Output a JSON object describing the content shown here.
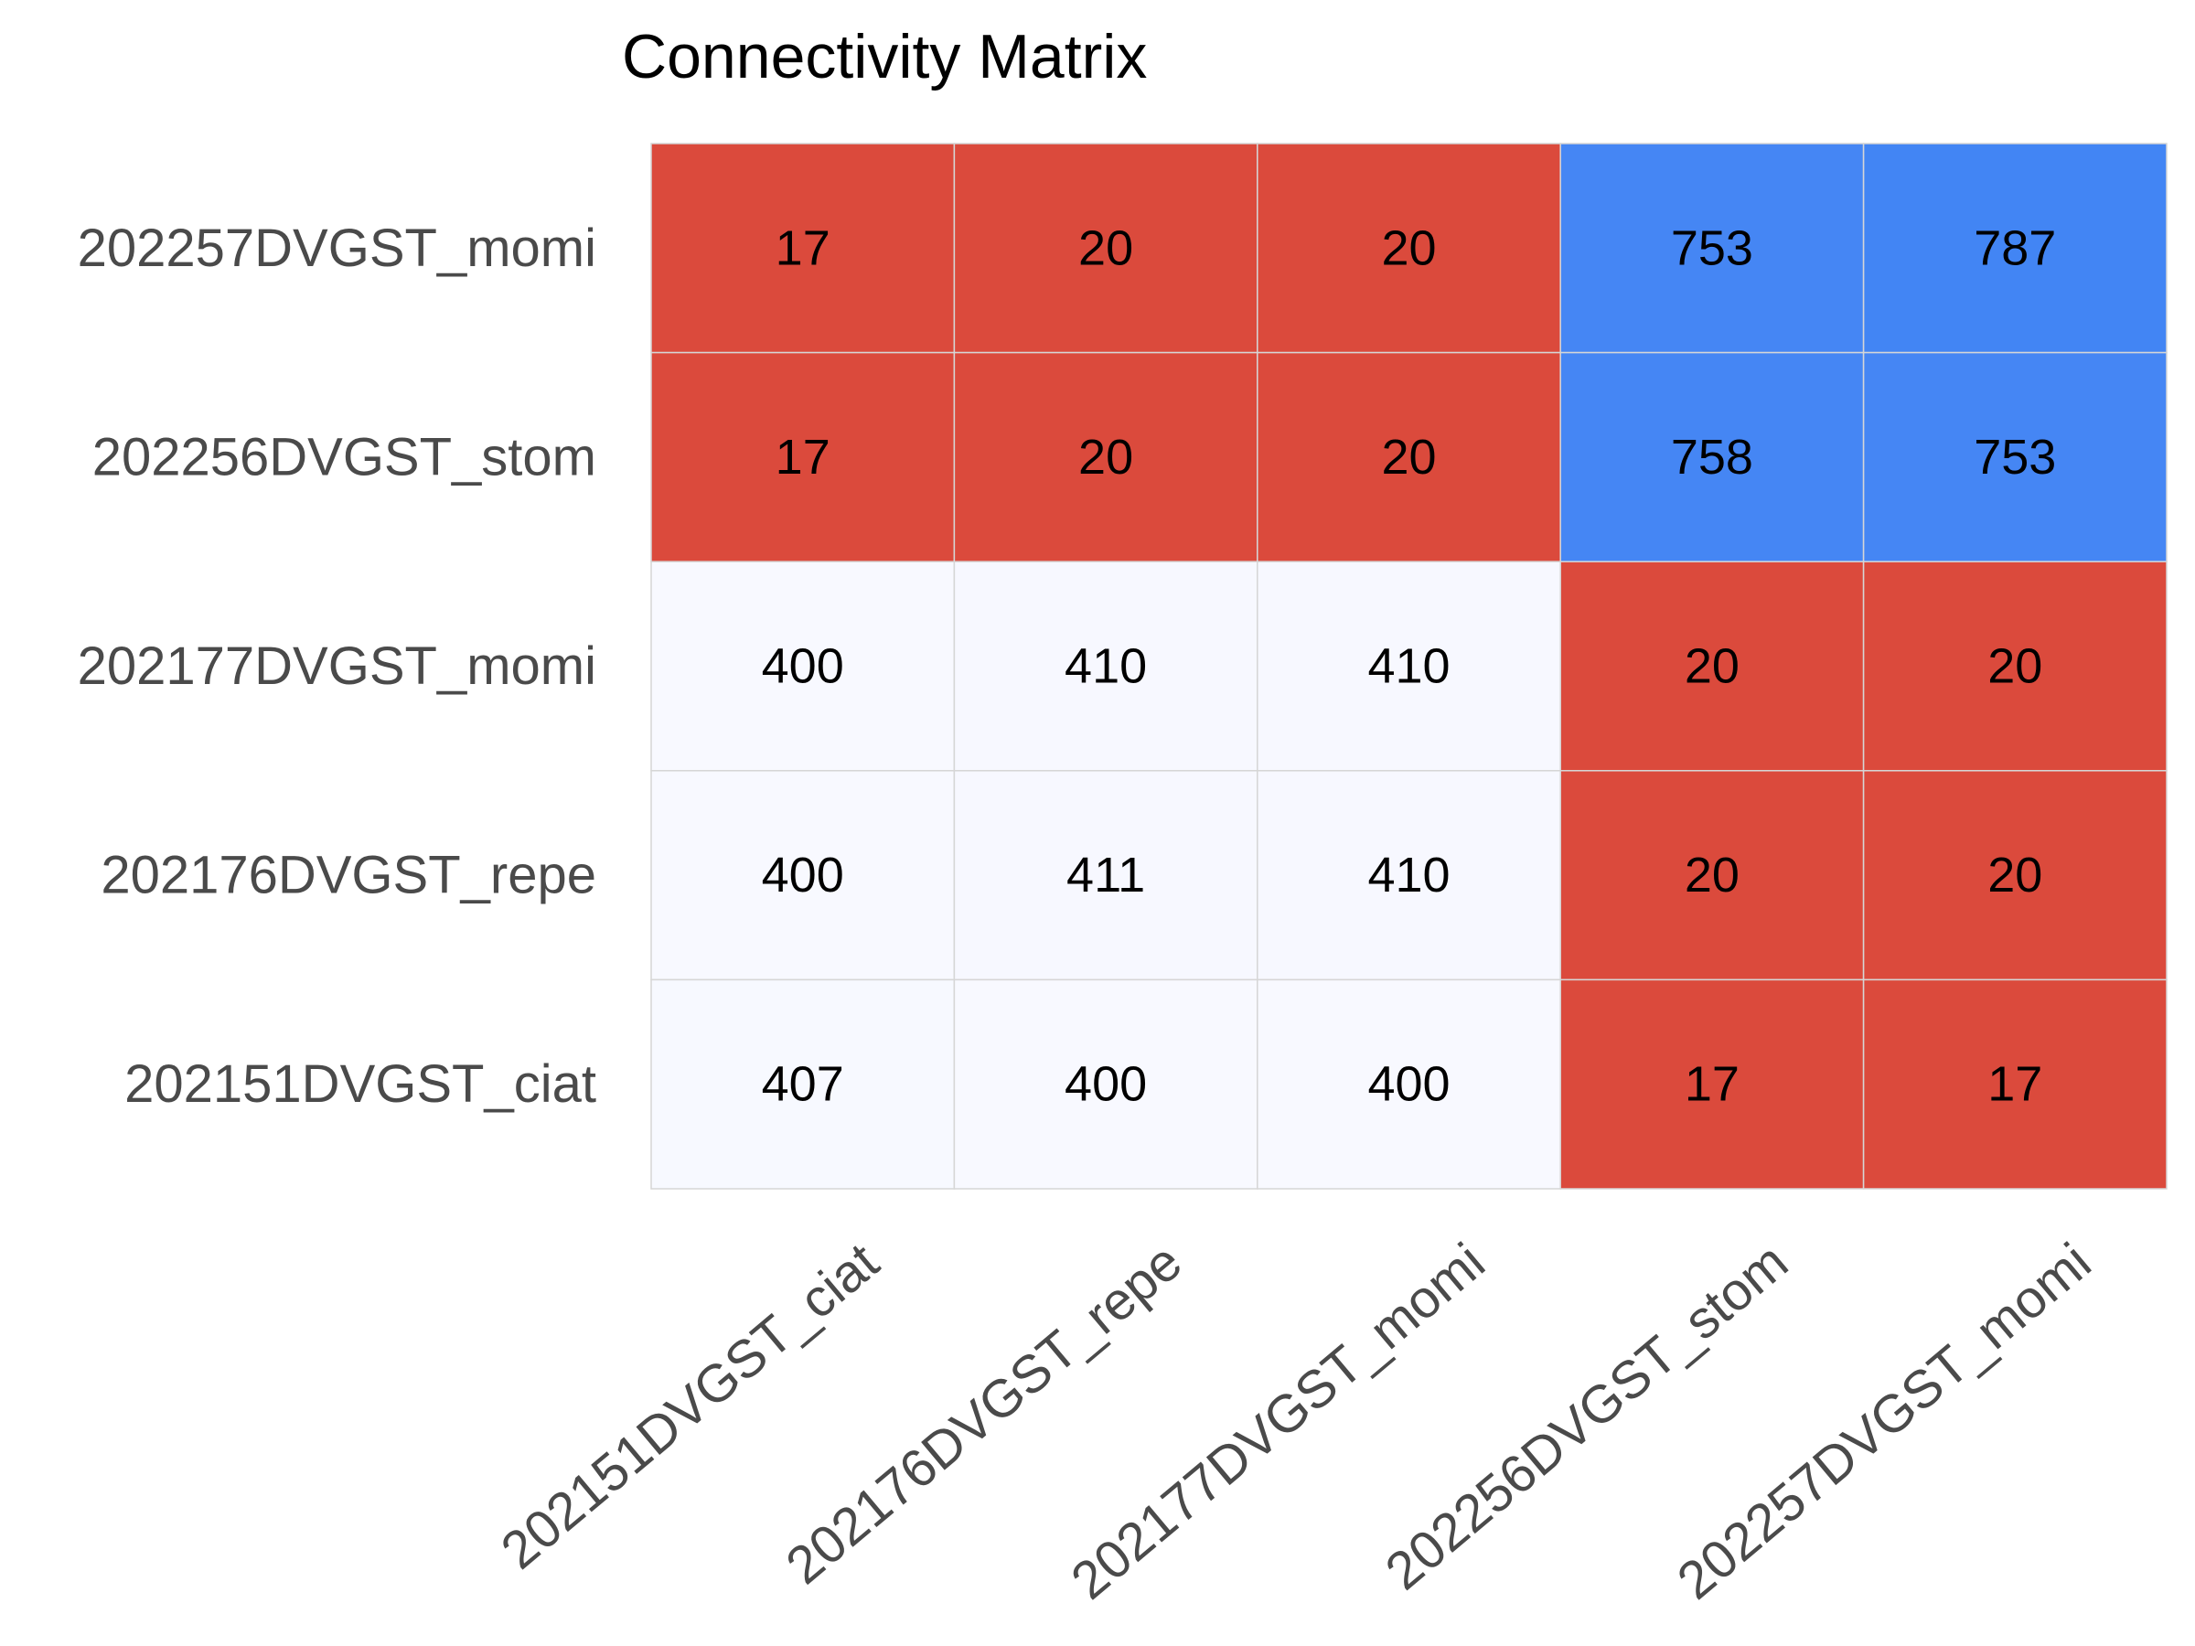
{
  "chart_data": {
    "type": "heatmap",
    "title": "Connectivity Matrix",
    "x_categories": [
      "202151DVGST_ciat",
      "202176DVGST_repe",
      "202177DVGST_momi",
      "202256DVGST_stom",
      "202257DVGST_momi"
    ],
    "y_categories": [
      "202257DVGST_momi",
      "202256DVGST_stom",
      "202177DVGST_momi",
      "202176DVGST_repe",
      "202151DVGST_ciat"
    ],
    "values": [
      [
        17,
        20,
        20,
        753,
        787
      ],
      [
        17,
        20,
        20,
        758,
        753
      ],
      [
        400,
        410,
        410,
        20,
        20
      ],
      [
        400,
        411,
        410,
        20,
        20
      ],
      [
        407,
        400,
        400,
        17,
        17
      ]
    ],
    "colors": {
      "low": "#db4a3c",
      "mid": "#ffffff",
      "high": "#4285f4"
    },
    "grid": true
  }
}
